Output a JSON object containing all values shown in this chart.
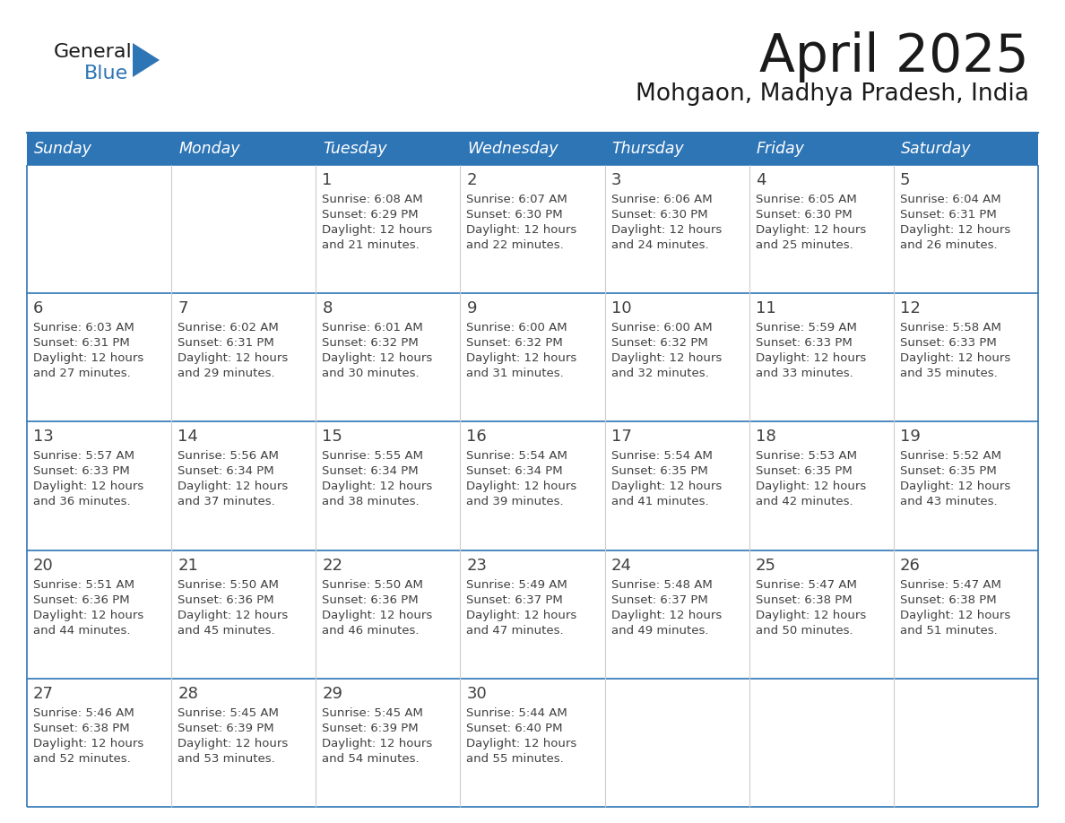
{
  "title": "April 2025",
  "subtitle": "Mohgaon, Madhya Pradesh, India",
  "header_bg": "#2E75B6",
  "header_text": "#FFFFFF",
  "cell_bg": "#FFFFFF",
  "row_line_color": "#2E75B6",
  "text_color": "#404040",
  "days_of_week": [
    "Sunday",
    "Monday",
    "Tuesday",
    "Wednesday",
    "Thursday",
    "Friday",
    "Saturday"
  ],
  "calendar_data": [
    [
      {
        "day": "",
        "sunrise": "",
        "sunset": "",
        "daylight_min": ""
      },
      {
        "day": "",
        "sunrise": "",
        "sunset": "",
        "daylight_min": ""
      },
      {
        "day": "1",
        "sunrise": "6:08 AM",
        "sunset": "6:29 PM",
        "daylight_min": "21 minutes."
      },
      {
        "day": "2",
        "sunrise": "6:07 AM",
        "sunset": "6:30 PM",
        "daylight_min": "22 minutes."
      },
      {
        "day": "3",
        "sunrise": "6:06 AM",
        "sunset": "6:30 PM",
        "daylight_min": "24 minutes."
      },
      {
        "day": "4",
        "sunrise": "6:05 AM",
        "sunset": "6:30 PM",
        "daylight_min": "25 minutes."
      },
      {
        "day": "5",
        "sunrise": "6:04 AM",
        "sunset": "6:31 PM",
        "daylight_min": "26 minutes."
      }
    ],
    [
      {
        "day": "6",
        "sunrise": "6:03 AM",
        "sunset": "6:31 PM",
        "daylight_min": "27 minutes."
      },
      {
        "day": "7",
        "sunrise": "6:02 AM",
        "sunset": "6:31 PM",
        "daylight_min": "29 minutes."
      },
      {
        "day": "8",
        "sunrise": "6:01 AM",
        "sunset": "6:32 PM",
        "daylight_min": "30 minutes."
      },
      {
        "day": "9",
        "sunrise": "6:00 AM",
        "sunset": "6:32 PM",
        "daylight_min": "31 minutes."
      },
      {
        "day": "10",
        "sunrise": "6:00 AM",
        "sunset": "6:32 PM",
        "daylight_min": "32 minutes."
      },
      {
        "day": "11",
        "sunrise": "5:59 AM",
        "sunset": "6:33 PM",
        "daylight_min": "33 minutes."
      },
      {
        "day": "12",
        "sunrise": "5:58 AM",
        "sunset": "6:33 PM",
        "daylight_min": "35 minutes."
      }
    ],
    [
      {
        "day": "13",
        "sunrise": "5:57 AM",
        "sunset": "6:33 PM",
        "daylight_min": "36 minutes."
      },
      {
        "day": "14",
        "sunrise": "5:56 AM",
        "sunset": "6:34 PM",
        "daylight_min": "37 minutes."
      },
      {
        "day": "15",
        "sunrise": "5:55 AM",
        "sunset": "6:34 PM",
        "daylight_min": "38 minutes."
      },
      {
        "day": "16",
        "sunrise": "5:54 AM",
        "sunset": "6:34 PM",
        "daylight_min": "39 minutes."
      },
      {
        "day": "17",
        "sunrise": "5:54 AM",
        "sunset": "6:35 PM",
        "daylight_min": "41 minutes."
      },
      {
        "day": "18",
        "sunrise": "5:53 AM",
        "sunset": "6:35 PM",
        "daylight_min": "42 minutes."
      },
      {
        "day": "19",
        "sunrise": "5:52 AM",
        "sunset": "6:35 PM",
        "daylight_min": "43 minutes."
      }
    ],
    [
      {
        "day": "20",
        "sunrise": "5:51 AM",
        "sunset": "6:36 PM",
        "daylight_min": "44 minutes."
      },
      {
        "day": "21",
        "sunrise": "5:50 AM",
        "sunset": "6:36 PM",
        "daylight_min": "45 minutes."
      },
      {
        "day": "22",
        "sunrise": "5:50 AM",
        "sunset": "6:36 PM",
        "daylight_min": "46 minutes."
      },
      {
        "day": "23",
        "sunrise": "5:49 AM",
        "sunset": "6:37 PM",
        "daylight_min": "47 minutes."
      },
      {
        "day": "24",
        "sunrise": "5:48 AM",
        "sunset": "6:37 PM",
        "daylight_min": "49 minutes."
      },
      {
        "day": "25",
        "sunrise": "5:47 AM",
        "sunset": "6:38 PM",
        "daylight_min": "50 minutes."
      },
      {
        "day": "26",
        "sunrise": "5:47 AM",
        "sunset": "6:38 PM",
        "daylight_min": "51 minutes."
      }
    ],
    [
      {
        "day": "27",
        "sunrise": "5:46 AM",
        "sunset": "6:38 PM",
        "daylight_min": "52 minutes."
      },
      {
        "day": "28",
        "sunrise": "5:45 AM",
        "sunset": "6:39 PM",
        "daylight_min": "53 minutes."
      },
      {
        "day": "29",
        "sunrise": "5:45 AM",
        "sunset": "6:39 PM",
        "daylight_min": "54 minutes."
      },
      {
        "day": "30",
        "sunrise": "5:44 AM",
        "sunset": "6:40 PM",
        "daylight_min": "55 minutes."
      },
      {
        "day": "",
        "sunrise": "",
        "sunset": "",
        "daylight_min": ""
      },
      {
        "day": "",
        "sunrise": "",
        "sunset": "",
        "daylight_min": ""
      },
      {
        "day": "",
        "sunrise": "",
        "sunset": "",
        "daylight_min": ""
      }
    ]
  ]
}
